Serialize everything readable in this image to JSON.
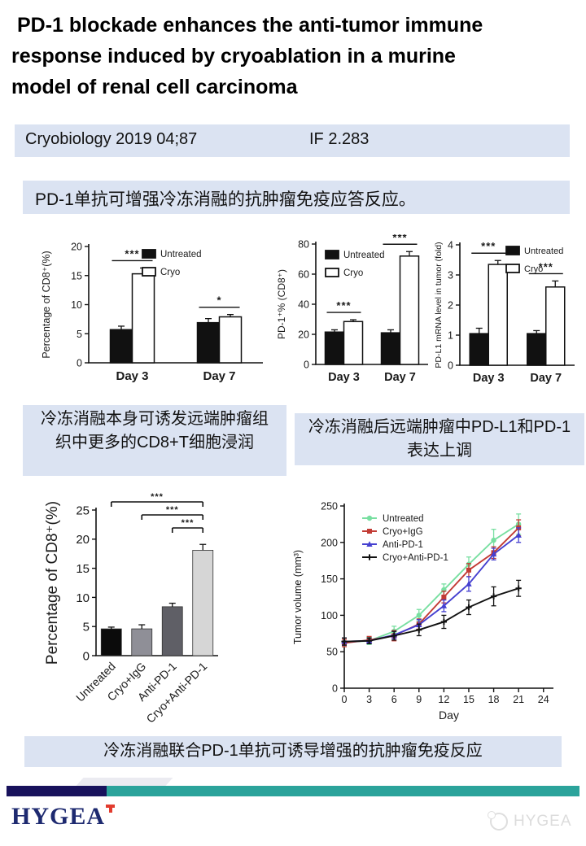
{
  "title": {
    "lines": [
      "PD-1 blockade enhances the anti-tumor immune",
      "response induced by cryoablation in a murine",
      "model of renal cell carcinoma"
    ]
  },
  "journal_bar": {
    "source": "Cryobiology 2019 04;87",
    "impact_factor": "IF 2.283"
  },
  "summary_banner": {
    "text": "PD-1单抗可增强冷冻消融的抗肿瘤免疫应答反应。"
  },
  "captions": {
    "left": "冷冻消融本身可诱发远端肿瘤组织中更多的CD8+T细胞浸润",
    "right": "冷冻消融后远端肿瘤中PD-L1和PD-1表达上调",
    "bottom": "冷冻消融联合PD-1单抗可诱导增强的抗肿瘤免疫反应"
  },
  "footer": {
    "logo_text": "HYGEA",
    "watermark_text": "HYGEA",
    "colors": {
      "navy": "#18125c",
      "teal": "#2ba39b",
      "logo_navy": "#1e2a70",
      "logo_red": "#e23b2e",
      "banner_blue": "#dbe3f2"
    }
  },
  "chart_data": [
    {
      "id": "cd8-percentage-day",
      "type": "bar",
      "ylabel": "Percentage of CD8⁺(%)",
      "ylim": [
        0,
        20
      ],
      "yticks": [
        0,
        5,
        10,
        15,
        20
      ],
      "series": [
        {
          "name": "Untreated",
          "fill": "#111111"
        },
        {
          "name": "Cryo",
          "fill": "#ffffff"
        }
      ],
      "groups": [
        {
          "label": "Day 3",
          "values": [
            5.7,
            15.3
          ],
          "errors": [
            0.6,
            1.0
          ],
          "sig": "***"
        },
        {
          "label": "Day 7",
          "values": [
            6.9,
            7.9
          ],
          "errors": [
            0.7,
            0.4
          ],
          "sig": "*"
        }
      ],
      "legend_position": "top-right"
    },
    {
      "id": "pd1-percent-cd8",
      "type": "bar",
      "ylabel": "PD-1⁺% (CD8⁺)",
      "ylim": [
        0,
        80
      ],
      "yticks": [
        0,
        20,
        40,
        60,
        80
      ],
      "series": [
        {
          "name": "Untreated",
          "fill": "#111111"
        },
        {
          "name": "Cryo",
          "fill": "#ffffff"
        }
      ],
      "groups": [
        {
          "label": "Day 3",
          "values": [
            21.5,
            28.5
          ],
          "errors": [
            1.5,
            1.2
          ],
          "sig": "***"
        },
        {
          "label": "Day 7",
          "values": [
            21.0,
            72.0
          ],
          "errors": [
            2.0,
            3.0
          ],
          "sig": "***"
        }
      ],
      "legend_position": "top-left"
    },
    {
      "id": "pdl1-mrna",
      "type": "bar",
      "ylabel": "PD-L1 mRNA level in tumor (fold)",
      "ylim": [
        0,
        4
      ],
      "yticks": [
        0,
        1,
        2,
        3,
        4
      ],
      "series": [
        {
          "name": "Untreated",
          "fill": "#111111"
        },
        {
          "name": "Cryo",
          "fill": "#ffffff"
        }
      ],
      "groups": [
        {
          "label": "Day 3",
          "values": [
            1.05,
            3.35
          ],
          "errors": [
            0.18,
            0.13
          ],
          "sig": "***"
        },
        {
          "label": "Day 7",
          "values": [
            1.05,
            2.6
          ],
          "errors": [
            0.1,
            0.2
          ],
          "sig": "***"
        }
      ],
      "legend_position": "top-right"
    },
    {
      "id": "cd8-percentage-combo",
      "type": "bar",
      "ylabel": "Percentage of CD8⁺(%)",
      "ylim": [
        0,
        25
      ],
      "yticks": [
        0,
        5,
        10,
        15,
        20,
        25
      ],
      "categories": [
        "Untreated",
        "Cryo+IgG",
        "Anti-PD-1",
        "Cryo+Anti-PD-1"
      ],
      "values": [
        4.6,
        4.6,
        8.4,
        18.1
      ],
      "errors": [
        0.3,
        0.7,
        0.6,
        1.0
      ],
      "fills": [
        "#0b0b0b",
        "#8f8f97",
        "#5f5f66",
        "#d6d6d6"
      ],
      "significance": [
        {
          "from": "Untreated",
          "to": "Cryo+Anti-PD-1",
          "label": "***"
        },
        {
          "from": "Cryo+IgG",
          "to": "Cryo+Anti-PD-1",
          "label": "***"
        },
        {
          "from": "Anti-PD-1",
          "to": "Cryo+Anti-PD-1",
          "label": "***"
        }
      ]
    },
    {
      "id": "tumor-volume",
      "type": "line",
      "xlabel": "Day",
      "ylabel": "Tumor volume (mm³)",
      "xlim": [
        0,
        25.2
      ],
      "ylim": [
        0,
        250
      ],
      "xticks": [
        0,
        3,
        6,
        9,
        12,
        15,
        18,
        21,
        24
      ],
      "yticks": [
        0,
        50,
        100,
        150,
        200,
        250
      ],
      "x": [
        0,
        3,
        6,
        9,
        12,
        15,
        18,
        21
      ],
      "series": [
        {
          "name": "Untreated",
          "color": "#78dfa1",
          "marker": "circle",
          "values": [
            63,
            65,
            78,
            100,
            135,
            170,
            203,
            225
          ],
          "errors": [
            6,
            5,
            7,
            8,
            8,
            10,
            15,
            14
          ]
        },
        {
          "name": "Cryo+IgG",
          "color": "#c23b34",
          "marker": "square",
          "values": [
            62,
            66,
            72,
            88,
            125,
            162,
            186,
            220
          ],
          "errors": [
            5,
            5,
            7,
            7,
            8,
            9,
            8,
            11
          ]
        },
        {
          "name": "Anti-PD-1",
          "color": "#4540d0",
          "marker": "triangle",
          "values": [
            64,
            65,
            73,
            87,
            113,
            143,
            184,
            210
          ],
          "errors": [
            5,
            4,
            5,
            7,
            8,
            10,
            8,
            10
          ]
        },
        {
          "name": "Cryo+Anti-PD-1",
          "color": "#111111",
          "marker": "plus",
          "values": [
            64,
            65,
            72,
            80,
            91,
            111,
            126,
            137
          ],
          "errors": [
            5,
            4,
            6,
            8,
            9,
            10,
            13,
            11
          ]
        }
      ],
      "legend_position": "top-left"
    }
  ]
}
